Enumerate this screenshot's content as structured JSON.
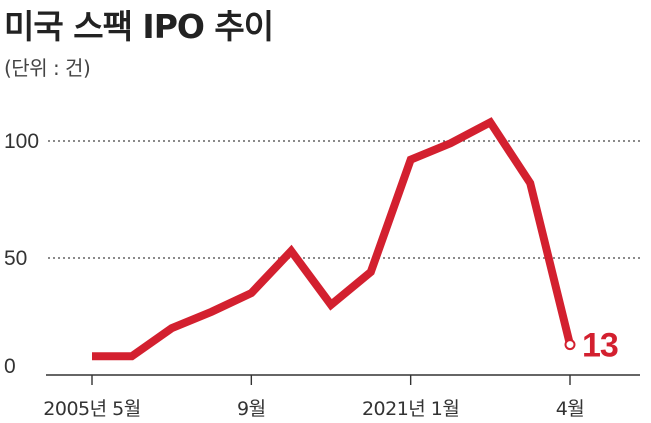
{
  "title": "미국 스팩 IPO 추이",
  "unit_note": "(단위 : 건)",
  "colors": {
    "line": "#d3202f",
    "axis": "#333333",
    "grid": "#444444"
  },
  "chart_data": {
    "type": "line",
    "title": "미국 스팩 IPO 추이",
    "ylabel": "(단위 : 건)",
    "ylim": [
      0,
      115
    ],
    "yticks": [
      0,
      50,
      100
    ],
    "grid": true,
    "x": [
      0,
      1,
      2,
      3,
      4,
      5,
      6,
      7,
      8,
      9,
      10,
      11,
      12
    ],
    "xticks": [
      {
        "x": 0,
        "label": "2005년 5월"
      },
      {
        "x": 4,
        "label": "9월"
      },
      {
        "x": 8,
        "label": "2021년 1월"
      },
      {
        "x": 12,
        "label": "4월"
      }
    ],
    "series": [
      {
        "values": [
          8,
          8,
          20,
          27,
          35,
          53,
          30,
          44,
          92,
          99,
          108,
          82,
          13
        ]
      }
    ],
    "annotation": {
      "index": 12,
      "label": "13"
    }
  }
}
